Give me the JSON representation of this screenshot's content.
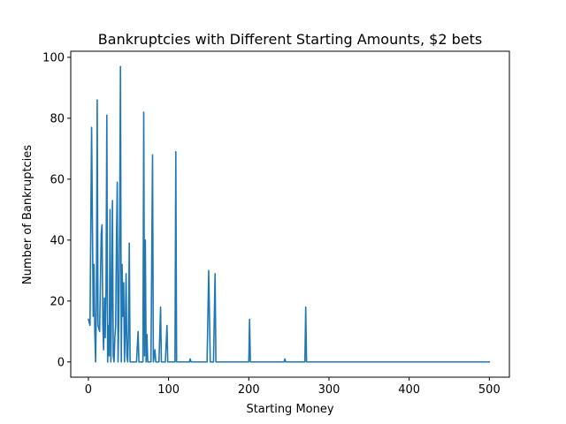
{
  "chart_data": {
    "type": "line",
    "title": "Bankruptcies with Different Starting Amounts, $2 bets",
    "xlabel": "Starting Money",
    "ylabel": "Number of Bankruptcies",
    "xlim": [
      -22,
      525
    ],
    "ylim": [
      -5,
      102
    ],
    "xticks": [
      0,
      100,
      200,
      300,
      400,
      500
    ],
    "yticks": [
      0,
      20,
      40,
      60,
      80,
      100
    ],
    "grid": false,
    "legend": "none",
    "series": [
      {
        "color": "#1f77b4",
        "points": [
          [
            0,
            14
          ],
          [
            2,
            12
          ],
          [
            4,
            77
          ],
          [
            6,
            15
          ],
          [
            7,
            32
          ],
          [
            8,
            10
          ],
          [
            9,
            0
          ],
          [
            10,
            20
          ],
          [
            11,
            86
          ],
          [
            12,
            12
          ],
          [
            14,
            10
          ],
          [
            16,
            42
          ],
          [
            17,
            45
          ],
          [
            18,
            12
          ],
          [
            19,
            4
          ],
          [
            20,
            21
          ],
          [
            21,
            8
          ],
          [
            22,
            24
          ],
          [
            23,
            81
          ],
          [
            24,
            0
          ],
          [
            25,
            12
          ],
          [
            26,
            2
          ],
          [
            27,
            50
          ],
          [
            28,
            0
          ],
          [
            29,
            20
          ],
          [
            30,
            53
          ],
          [
            31,
            2
          ],
          [
            32,
            0
          ],
          [
            33,
            8
          ],
          [
            34,
            12
          ],
          [
            35,
            40
          ],
          [
            36,
            59
          ],
          [
            37,
            0
          ],
          [
            38,
            15
          ],
          [
            39,
            45
          ],
          [
            40,
            97
          ],
          [
            41,
            0
          ],
          [
            42,
            32
          ],
          [
            43,
            15
          ],
          [
            44,
            26
          ],
          [
            45,
            0
          ],
          [
            46,
            10
          ],
          [
            47,
            29
          ],
          [
            48,
            2
          ],
          [
            49,
            0
          ],
          [
            50,
            10
          ],
          [
            51,
            39
          ],
          [
            52,
            0
          ],
          [
            54,
            0
          ],
          [
            56,
            0
          ],
          [
            58,
            0
          ],
          [
            60,
            0
          ],
          [
            62,
            10
          ],
          [
            63,
            0
          ],
          [
            66,
            0
          ],
          [
            68,
            0
          ],
          [
            69,
            82
          ],
          [
            70,
            2
          ],
          [
            71,
            40
          ],
          [
            72,
            0
          ],
          [
            73,
            9
          ],
          [
            74,
            0
          ],
          [
            76,
            0
          ],
          [
            78,
            0
          ],
          [
            80,
            68
          ],
          [
            81,
            0
          ],
          [
            83,
            4
          ],
          [
            84,
            0
          ],
          [
            88,
            0
          ],
          [
            90,
            18
          ],
          [
            91,
            0
          ],
          [
            96,
            0
          ],
          [
            98,
            12
          ],
          [
            99,
            0
          ],
          [
            108,
            0
          ],
          [
            109,
            69
          ],
          [
            110,
            0
          ],
          [
            126,
            0
          ],
          [
            127,
            1
          ],
          [
            128,
            0
          ],
          [
            148,
            0
          ],
          [
            150,
            30
          ],
          [
            152,
            0
          ],
          [
            156,
            0
          ],
          [
            158,
            29
          ],
          [
            159,
            0
          ],
          [
            200,
            0
          ],
          [
            201,
            14
          ],
          [
            202,
            0
          ],
          [
            244,
            0
          ],
          [
            245,
            1
          ],
          [
            246,
            0
          ],
          [
            270,
            0
          ],
          [
            271,
            18
          ],
          [
            272,
            0
          ],
          [
            500,
            0
          ]
        ]
      }
    ]
  }
}
